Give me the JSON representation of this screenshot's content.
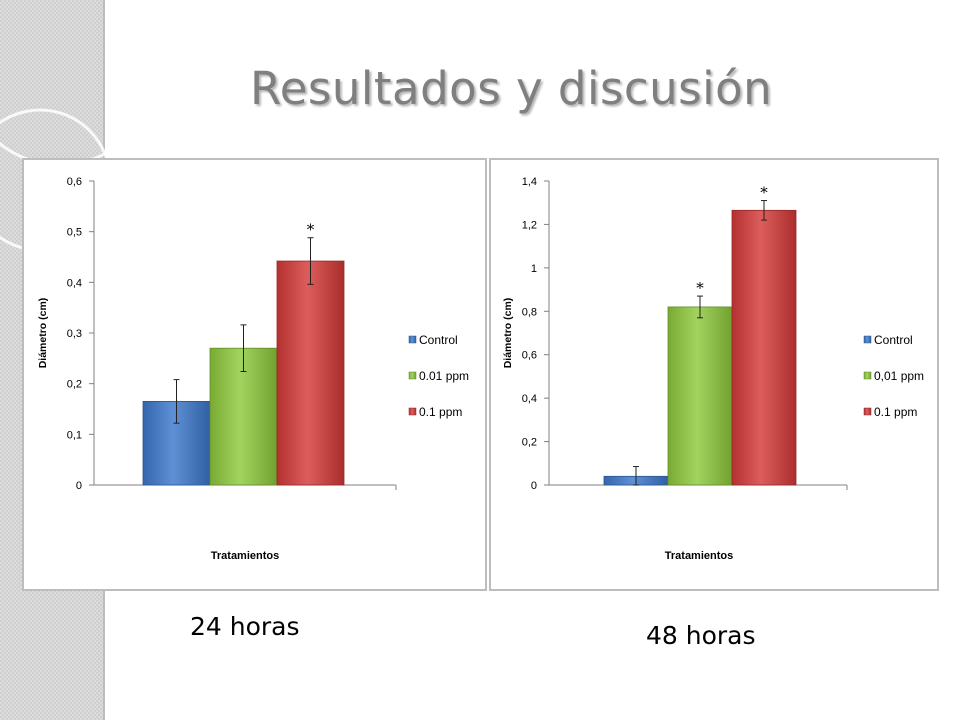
{
  "slide": {
    "title": "Resultados y discusión",
    "caption_left": "24 horas",
    "caption_right": "48 horas"
  },
  "colors": {
    "control": "#3c78cc",
    "ppm001": "#8ec93c",
    "ppm01": "#d43a38",
    "title": "#7f7f7f"
  },
  "chart_data": [
    {
      "type": "bar",
      "xlabel": "Tratamientos",
      "ylabel": "Diámetro (cm)",
      "ylim": [
        0,
        0.6
      ],
      "yticks": [
        "0",
        "0,1",
        "0,2",
        "0,3",
        "0,4",
        "0,5",
        "0,6"
      ],
      "ytick_values": [
        0,
        0.1,
        0.2,
        0.3,
        0.4,
        0.5,
        0.6
      ],
      "legend_position": "right",
      "series": [
        {
          "name": "Control",
          "value": 0.165,
          "error": 0.043,
          "significant": false,
          "marker": ""
        },
        {
          "name": "0.01 ppm",
          "value": 0.27,
          "error": 0.046,
          "significant": false,
          "marker": ""
        },
        {
          "name": "0.1 ppm",
          "value": 0.442,
          "error": 0.046,
          "significant": true,
          "marker": "*"
        }
      ]
    },
    {
      "type": "bar",
      "xlabel": "Tratamientos",
      "ylabel": "Diámetro (cm)",
      "ylim": [
        0,
        1.4
      ],
      "yticks": [
        "0",
        "0,2",
        "0,4",
        "0,6",
        "0,8",
        "1",
        "1,2",
        "1,4"
      ],
      "ytick_values": [
        0,
        0.2,
        0.4,
        0.6,
        0.8,
        1,
        1.2,
        1.4
      ],
      "legend_position": "right",
      "series": [
        {
          "name": "Control",
          "value": 0.04,
          "error": 0.045,
          "significant": false,
          "marker": ""
        },
        {
          "name": "0,01 ppm",
          "value": 0.82,
          "error": 0.05,
          "significant": true,
          "marker": "*"
        },
        {
          "name": "0.1 ppm",
          "value": 1.265,
          "error": 0.045,
          "significant": true,
          "marker": "*"
        }
      ]
    }
  ]
}
